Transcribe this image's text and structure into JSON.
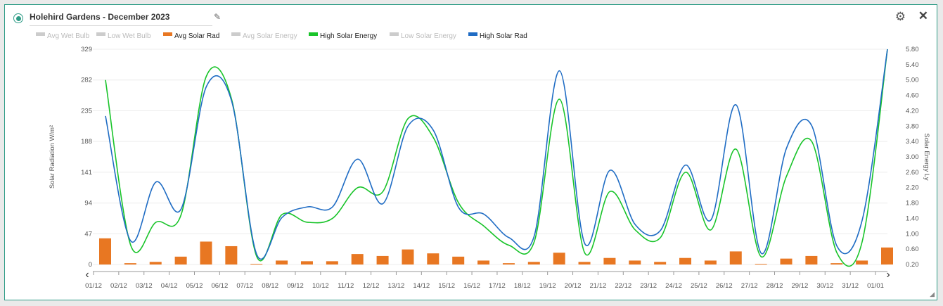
{
  "header": {
    "title": "Holehird Gardens - December 2023",
    "edit_icon": "pencil-icon",
    "settings_icon": "gear-icon",
    "close_icon": "close-icon",
    "close_glyph": "✕",
    "settings_glyph": "⚙",
    "edit_glyph": "✎"
  },
  "legend": [
    {
      "label": "Avg Wet Bulb",
      "active": false,
      "color": "#cccccc"
    },
    {
      "label": "Low Wet Bulb",
      "active": false,
      "color": "#cccccc"
    },
    {
      "label": "Avg Solar Rad",
      "active": true,
      "color": "#e87722"
    },
    {
      "label": "Avg Solar Energy",
      "active": false,
      "color": "#cccccc"
    },
    {
      "label": "High Solar Energy",
      "active": true,
      "color": "#19c42a"
    },
    {
      "label": "Low Solar Energy",
      "active": false,
      "color": "#cccccc"
    },
    {
      "label": "High Solar Rad",
      "active": true,
      "color": "#1f6cc4"
    }
  ],
  "nav": {
    "prev": "‹",
    "next": "›"
  },
  "chart_data": {
    "type": "line",
    "x": [
      "01/12",
      "02/12",
      "03/12",
      "04/12",
      "05/12",
      "06/12",
      "07/12",
      "08/12",
      "09/12",
      "10/12",
      "11/12",
      "12/12",
      "13/12",
      "14/12",
      "15/12",
      "16/12",
      "17/12",
      "18/12",
      "19/12",
      "20/12",
      "21/12",
      "22/12",
      "23/12",
      "24/12",
      "25/12",
      "26/12",
      "27/12",
      "28/12",
      "29/12",
      "30/12",
      "31/12",
      "01/01"
    ],
    "ylabel": "Solar Radiation W/m²",
    "y2label": "Solar Energy Ly",
    "y_ticks": [
      "329",
      "282",
      "235",
      "188",
      "141",
      "94",
      "47",
      "0"
    ],
    "y_range": [
      0,
      329
    ],
    "y2_ticks": [
      "5.80",
      "5.40",
      "5.00",
      "4.60",
      "4.20",
      "3.80",
      "3.40",
      "3.00",
      "2.60",
      "2.20",
      "1.80",
      "1.40",
      "1.00",
      "0.60",
      "0.20"
    ],
    "y2_range": [
      0.2,
      5.8
    ],
    "series": [
      {
        "name": "Avg Solar Rad",
        "kind": "bar",
        "axis": "left",
        "color": "#e87722",
        "values": [
          40,
          2,
          4,
          12,
          35,
          28,
          1,
          6,
          5,
          5,
          16,
          13,
          23,
          17,
          12,
          6,
          2,
          4,
          18,
          4,
          10,
          6,
          4,
          10,
          6,
          20,
          1,
          9,
          13,
          2,
          6,
          26
        ]
      },
      {
        "name": "High Solar Energy",
        "kind": "line",
        "axis": "right",
        "color": "#19c42a",
        "values": [
          5.0,
          0.7,
          1.3,
          1.5,
          5.1,
          4.5,
          0.4,
          1.5,
          1.3,
          1.4,
          2.2,
          2.1,
          4.0,
          3.5,
          1.8,
          1.2,
          0.7,
          0.8,
          4.5,
          0.5,
          2.1,
          1.1,
          0.9,
          2.6,
          1.1,
          3.2,
          0.4,
          2.5,
          3.4,
          0.5,
          0.8,
          5.8
        ]
      },
      {
        "name": "High Solar Rad",
        "kind": "line",
        "axis": "left",
        "color": "#1f6cc4",
        "values": [
          227,
          36,
          126,
          85,
          272,
          250,
          15,
          72,
          88,
          88,
          161,
          93,
          212,
          205,
          87,
          77,
          41,
          44,
          296,
          32,
          144,
          61,
          52,
          152,
          68,
          244,
          17,
          178,
          212,
          28,
          68,
          329
        ]
      }
    ],
    "grid": true,
    "legend_position": "top-left"
  }
}
